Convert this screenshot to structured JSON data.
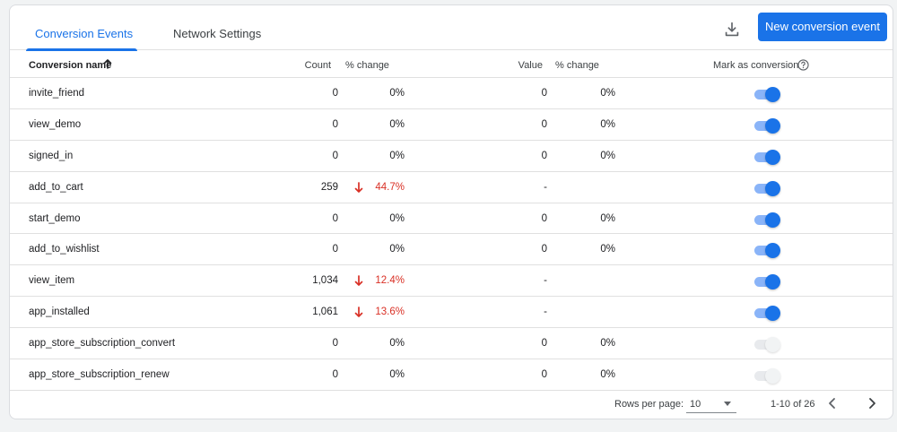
{
  "tabs": [
    {
      "label": "Conversion Events",
      "active": true
    },
    {
      "label": "Network Settings",
      "active": false
    }
  ],
  "actions": {
    "download_icon": "download-icon",
    "new_event_label": "New conversion event"
  },
  "table": {
    "columns": {
      "name": "Conversion name",
      "count": "Count",
      "count_change": "% change",
      "value": "Value",
      "value_change": "% change",
      "mark": "Mark as conversion"
    },
    "sort": {
      "column": "name",
      "direction": "ascending"
    },
    "rows": [
      {
        "name": "invite_friend",
        "count": "0",
        "count_change": "0%",
        "count_trend": "",
        "value": "0",
        "value_change": "0%",
        "marked": true
      },
      {
        "name": "view_demo",
        "count": "0",
        "count_change": "0%",
        "count_trend": "",
        "value": "0",
        "value_change": "0%",
        "marked": true
      },
      {
        "name": "signed_in",
        "count": "0",
        "count_change": "0%",
        "count_trend": "",
        "value": "0",
        "value_change": "0%",
        "marked": true
      },
      {
        "name": "add_to_cart",
        "count": "259",
        "count_change": "44.7%",
        "count_trend": "down",
        "value": "-",
        "value_change": "",
        "marked": true
      },
      {
        "name": "start_demo",
        "count": "0",
        "count_change": "0%",
        "count_trend": "",
        "value": "0",
        "value_change": "0%",
        "marked": true
      },
      {
        "name": "add_to_wishlist",
        "count": "0",
        "count_change": "0%",
        "count_trend": "",
        "value": "0",
        "value_change": "0%",
        "marked": true
      },
      {
        "name": "view_item",
        "count": "1,034",
        "count_change": "12.4%",
        "count_trend": "down",
        "value": "-",
        "value_change": "",
        "marked": true
      },
      {
        "name": "app_installed",
        "count": "1,061",
        "count_change": "13.6%",
        "count_trend": "down",
        "value": "-",
        "value_change": "",
        "marked": true
      },
      {
        "name": "app_store_subscription_convert",
        "count": "0",
        "count_change": "0%",
        "count_trend": "",
        "value": "0",
        "value_change": "0%",
        "marked": false
      },
      {
        "name": "app_store_subscription_renew",
        "count": "0",
        "count_change": "0%",
        "count_trend": "",
        "value": "0",
        "value_change": "0%",
        "marked": false
      }
    ]
  },
  "pagination": {
    "rows_per_page_label": "Rows per page:",
    "rows_per_page": "10",
    "range": "1-10 of 26"
  },
  "colors": {
    "accent": "#1a73e8",
    "negative": "#d93025"
  }
}
